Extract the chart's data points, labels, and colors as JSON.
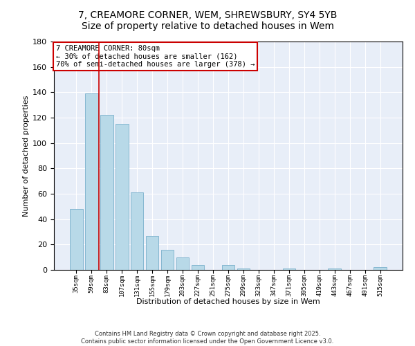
{
  "title": "7, CREAMORE CORNER, WEM, SHREWSBURY, SY4 5YB",
  "subtitle": "Size of property relative to detached houses in Wem",
  "xlabel": "Distribution of detached houses by size in Wem",
  "ylabel": "Number of detached properties",
  "bar_labels": [
    "35sqm",
    "59sqm",
    "83sqm",
    "107sqm",
    "131sqm",
    "155sqm",
    "179sqm",
    "203sqm",
    "227sqm",
    "251sqm",
    "275sqm",
    "299sqm",
    "323sqm",
    "347sqm",
    "371sqm",
    "395sqm",
    "419sqm",
    "443sqm",
    "467sqm",
    "491sqm",
    "515sqm"
  ],
  "bar_values": [
    48,
    139,
    122,
    115,
    61,
    27,
    16,
    10,
    4,
    0,
    4,
    1,
    0,
    0,
    1,
    0,
    0,
    1,
    0,
    0,
    2
  ],
  "bar_color": "#b8d9e8",
  "bar_edge_color": "#7ab0cc",
  "vline_color": "#cc0000",
  "ylim": [
    0,
    180
  ],
  "yticks": [
    0,
    20,
    40,
    60,
    80,
    100,
    120,
    140,
    160,
    180
  ],
  "annotation_title": "7 CREAMORE CORNER: 80sqm",
  "annotation_line1": "← 30% of detached houses are smaller (162)",
  "annotation_line2": "70% of semi-detached houses are larger (378) →",
  "annotation_box_color": "#ffffff",
  "annotation_box_edge": "#cc0000",
  "footnote1": "Contains HM Land Registry data © Crown copyright and database right 2025.",
  "footnote2": "Contains public sector information licensed under the Open Government Licence v3.0.",
  "bg_color": "#e8eef8",
  "title_fontsize": 10,
  "annotation_fontsize": 7.5,
  "tick_label_fontsize": 6.5,
  "axis_label_fontsize": 8
}
